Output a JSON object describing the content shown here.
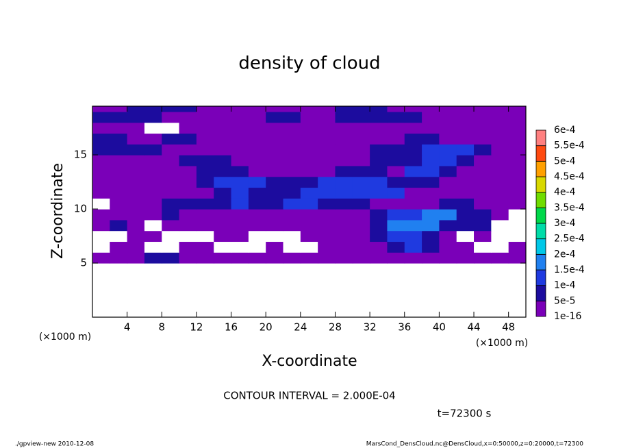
{
  "chart_data": {
    "type": "contour",
    "title": "density of cloud",
    "xlabel": "X-coordinate",
    "ylabel": "Z-coordinate",
    "xunit": "(×1000 m)",
    "yunit": "(×1000 m)",
    "contour_interval": "CONTOUR INTERVAL = 2.000E-04",
    "time": "t=72300 s",
    "footer_left": "./gpview-new  2010-12-08",
    "footer_right": "MarsCond_DensCloud.nc@DensCloud,x=0:50000,z=0:20000,t=72300",
    "xlim": [
      0,
      50
    ],
    "ylim": [
      0,
      19.5
    ],
    "xticks": [
      4,
      8,
      12,
      16,
      20,
      24,
      28,
      32,
      36,
      40,
      44,
      48
    ],
    "yticks": [
      5,
      10,
      15
    ],
    "levels": [
      {
        "value": 1e-16,
        "label": "1e-16"
      },
      {
        "value": 5e-05,
        "label": "5e-5"
      },
      {
        "value": 0.0001,
        "label": "1e-4"
      },
      {
        "value": 0.00015,
        "label": "1.5e-4"
      },
      {
        "value": 0.0002,
        "label": "2e-4"
      },
      {
        "value": 0.00025,
        "label": "2.5e-4"
      },
      {
        "value": 0.0003,
        "label": "3e-4"
      },
      {
        "value": 0.00035,
        "label": "3.5e-4"
      },
      {
        "value": 0.0004,
        "label": "4e-4"
      },
      {
        "value": 0.00045,
        "label": "4.5e-4"
      },
      {
        "value": 0.0005,
        "label": "5e-4"
      },
      {
        "value": 0.00055,
        "label": "5.5e-4"
      },
      {
        "value": 0.0006,
        "label": "6e-4"
      }
    ],
    "colors": [
      "#7a00b8",
      "#1c0c9e",
      "#1f3ae0",
      "#2080f0",
      "#00c8e8",
      "#00dca8",
      "#00d84a",
      "#70dc00",
      "#d8d800",
      "#ffa000",
      "#ff4a10",
      "#ff8080"
    ],
    "field": {
      "x_edges": [
        0,
        2,
        4,
        6,
        8,
        10,
        12,
        14,
        16,
        18,
        20,
        22,
        24,
        26,
        28,
        30,
        32,
        34,
        36,
        38,
        40,
        42,
        44,
        46,
        48,
        50
      ],
      "z_edges": [
        0,
        1,
        2,
        3,
        4,
        5,
        6,
        7,
        8,
        9,
        10,
        11,
        12,
        13,
        14,
        15,
        16,
        17,
        18,
        19,
        20
      ],
      "values": [
        [
          0,
          0,
          0,
          0,
          0,
          0,
          0,
          0,
          0,
          0,
          0,
          0,
          0,
          0,
          0,
          0,
          0,
          0,
          0,
          0,
          0,
          0,
          0,
          0,
          0
        ],
        [
          0,
          0,
          0,
          0,
          0,
          0,
          0,
          0,
          0,
          0,
          0,
          0,
          0,
          0,
          0,
          0,
          0,
          0,
          0,
          0,
          0,
          0,
          0,
          0,
          0
        ],
        [
          0,
          0,
          0,
          0,
          0,
          0,
          0,
          0,
          0,
          0,
          0,
          0,
          0,
          0,
          0,
          0,
          0,
          0,
          0,
          0,
          0,
          0,
          0,
          0,
          0
        ],
        [
          0,
          0,
          0,
          0,
          0,
          0,
          0,
          0,
          0,
          0,
          0,
          0,
          0,
          0,
          0,
          0,
          0,
          0,
          0,
          0,
          0,
          0,
          0,
          0,
          0
        ],
        [
          0,
          0,
          0,
          0,
          0,
          0,
          0,
          0,
          0,
          0,
          0,
          0,
          0,
          0,
          0,
          0,
          0,
          0,
          0,
          0,
          0,
          0,
          0,
          0,
          0
        ],
        [
          2e-05,
          2e-05,
          2e-05,
          7e-05,
          7e-05,
          2e-05,
          2e-05,
          2e-05,
          2e-05,
          2e-05,
          2e-05,
          2e-05,
          2e-05,
          2e-05,
          2e-05,
          2e-05,
          2e-05,
          2e-05,
          2e-05,
          2e-05,
          2e-05,
          2e-05,
          2e-05,
          2e-05,
          2e-05
        ],
        [
          0,
          2e-05,
          2e-05,
          0,
          0,
          2e-05,
          2e-05,
          0,
          0,
          0,
          2e-05,
          0,
          0,
          2e-05,
          2e-05,
          2e-05,
          2e-05,
          7e-05,
          0.00012,
          7e-05,
          2e-05,
          2e-05,
          0,
          0,
          2e-05
        ],
        [
          0,
          0,
          2e-05,
          2e-05,
          0,
          0,
          0,
          2e-05,
          2e-05,
          0,
          0,
          0,
          2e-05,
          2e-05,
          2e-05,
          2e-05,
          7e-05,
          0.00012,
          0.00012,
          7e-05,
          2e-05,
          0,
          2e-05,
          0,
          0
        ],
        [
          2e-05,
          7e-05,
          2e-05,
          0,
          2e-05,
          2e-05,
          2e-05,
          2e-05,
          2e-05,
          2e-05,
          2e-05,
          2e-05,
          2e-05,
          2e-05,
          2e-05,
          2e-05,
          7e-05,
          0.00017,
          0.00017,
          0.00017,
          7e-05,
          7e-05,
          7e-05,
          0,
          0
        ],
        [
          2e-05,
          2e-05,
          2e-05,
          2e-05,
          7e-05,
          2e-05,
          2e-05,
          2e-05,
          2e-05,
          2e-05,
          2e-05,
          2e-05,
          2e-05,
          2e-05,
          2e-05,
          2e-05,
          7e-05,
          0.00012,
          0.00012,
          0.00017,
          0.00017,
          7e-05,
          7e-05,
          2e-05,
          0
        ],
        [
          0,
          2e-05,
          2e-05,
          2e-05,
          7e-05,
          7e-05,
          7e-05,
          7e-05,
          0.00012,
          7e-05,
          7e-05,
          0.00012,
          0.00012,
          7e-05,
          7e-05,
          7e-05,
          2e-05,
          2e-05,
          2e-05,
          2e-05,
          7e-05,
          7e-05,
          2e-05,
          2e-05,
          2e-05
        ],
        [
          2e-05,
          2e-05,
          2e-05,
          2e-05,
          2e-05,
          2e-05,
          2e-05,
          7e-05,
          0.00012,
          7e-05,
          7e-05,
          7e-05,
          0.00012,
          0.00012,
          0.00012,
          0.00012,
          0.00012,
          0.00012,
          2e-05,
          2e-05,
          2e-05,
          2e-05,
          2e-05,
          2e-05,
          2e-05
        ],
        [
          2e-05,
          2e-05,
          2e-05,
          2e-05,
          2e-05,
          2e-05,
          7e-05,
          0.00012,
          0.00012,
          0.00012,
          7e-05,
          7e-05,
          7e-05,
          0.00012,
          0.00012,
          0.00012,
          0.00012,
          7e-05,
          7e-05,
          7e-05,
          2e-05,
          2e-05,
          2e-05,
          2e-05,
          2e-05
        ],
        [
          2e-05,
          2e-05,
          2e-05,
          2e-05,
          2e-05,
          2e-05,
          7e-05,
          7e-05,
          7e-05,
          2e-05,
          2e-05,
          2e-05,
          2e-05,
          2e-05,
          7e-05,
          7e-05,
          7e-05,
          2e-05,
          0.00012,
          0.00012,
          7e-05,
          2e-05,
          2e-05,
          2e-05,
          2e-05
        ],
        [
          2e-05,
          2e-05,
          2e-05,
          2e-05,
          2e-05,
          7e-05,
          7e-05,
          7e-05,
          2e-05,
          2e-05,
          2e-05,
          2e-05,
          2e-05,
          2e-05,
          2e-05,
          2e-05,
          7e-05,
          7e-05,
          7e-05,
          0.00012,
          0.00012,
          7e-05,
          2e-05,
          2e-05,
          2e-05
        ],
        [
          7e-05,
          7e-05,
          7e-05,
          7e-05,
          2e-05,
          2e-05,
          2e-05,
          2e-05,
          2e-05,
          2e-05,
          2e-05,
          2e-05,
          2e-05,
          2e-05,
          2e-05,
          2e-05,
          7e-05,
          7e-05,
          7e-05,
          0.00012,
          0.00012,
          0.00012,
          7e-05,
          2e-05,
          2e-05
        ],
        [
          7e-05,
          7e-05,
          2e-05,
          2e-05,
          7e-05,
          7e-05,
          2e-05,
          2e-05,
          2e-05,
          2e-05,
          2e-05,
          2e-05,
          2e-05,
          2e-05,
          2e-05,
          2e-05,
          2e-05,
          2e-05,
          7e-05,
          7e-05,
          2e-05,
          2e-05,
          2e-05,
          2e-05,
          2e-05
        ],
        [
          2e-05,
          2e-05,
          2e-05,
          0,
          0,
          2e-05,
          2e-05,
          2e-05,
          2e-05,
          2e-05,
          2e-05,
          2e-05,
          2e-05,
          2e-05,
          2e-05,
          2e-05,
          2e-05,
          2e-05,
          2e-05,
          2e-05,
          2e-05,
          2e-05,
          2e-05,
          2e-05,
          2e-05
        ],
        [
          7e-05,
          7e-05,
          7e-05,
          7e-05,
          2e-05,
          2e-05,
          2e-05,
          2e-05,
          2e-05,
          2e-05,
          7e-05,
          7e-05,
          2e-05,
          2e-05,
          7e-05,
          7e-05,
          7e-05,
          7e-05,
          7e-05,
          2e-05,
          2e-05,
          2e-05,
          2e-05,
          2e-05,
          2e-05
        ],
        [
          2e-05,
          2e-05,
          7e-05,
          7e-05,
          7e-05,
          7e-05,
          2e-05,
          2e-05,
          2e-05,
          2e-05,
          2e-05,
          2e-05,
          2e-05,
          2e-05,
          7e-05,
          7e-05,
          7e-05,
          2e-05,
          2e-05,
          2e-05,
          2e-05,
          2e-05,
          2e-05,
          2e-05,
          2e-05
        ]
      ]
    }
  }
}
